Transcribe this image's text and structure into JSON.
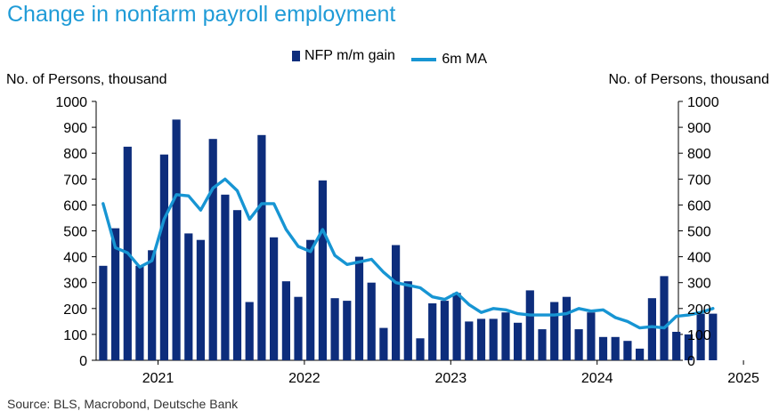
{
  "colors": {
    "bar": "#0d2d7c",
    "line": "#1795d3",
    "title": "#1f9bd7"
  },
  "chart_data": {
    "type": "bar",
    "title": "Change in nonfarm payroll employment",
    "ylabel_left": "No. of Persons, thousand",
    "ylabel_right": "No. of Persons, thousand",
    "source": "Source: BLS, Macrobond, Deutsche Bank",
    "legend": {
      "position": "top-center",
      "bar": "NFP m/m gain",
      "line": "6m MA"
    },
    "ylim": [
      0,
      1000
    ],
    "yticks": [
      0,
      100,
      200,
      300,
      400,
      500,
      600,
      700,
      800,
      900,
      1000
    ],
    "xticks": [
      "2021",
      "2022",
      "2023",
      "2024",
      "2025"
    ],
    "x_start": "2020-08",
    "x_end": "2024-10",
    "categories": [
      "2020-08",
      "2020-09",
      "2020-10",
      "2020-11",
      "2020-12",
      "2021-01",
      "2021-02",
      "2021-03",
      "2021-04",
      "2021-05",
      "2021-06",
      "2021-07",
      "2021-08",
      "2021-09",
      "2021-10",
      "2021-11",
      "2021-12",
      "2022-01",
      "2022-02",
      "2022-03",
      "2022-04",
      "2022-05",
      "2022-06",
      "2022-07",
      "2022-08",
      "2022-09",
      "2022-10",
      "2022-11",
      "2022-12",
      "2023-01",
      "2023-02",
      "2023-03",
      "2023-04",
      "2023-05",
      "2023-06",
      "2023-07",
      "2023-08",
      "2023-09",
      "2023-10",
      "2023-11",
      "2023-12",
      "2024-01",
      "2024-02",
      "2024-03",
      "2024-04",
      "2024-05",
      "2024-06",
      "2024-07",
      "2024-08",
      "2024-09",
      "2024-10"
    ],
    "series": [
      {
        "name": "NFP m/m gain",
        "type": "bar",
        "values": [
          365,
          510,
          825,
          365,
          425,
          795,
          930,
          490,
          465,
          855,
          640,
          580,
          225,
          870,
          475,
          305,
          245,
          465,
          695,
          240,
          230,
          400,
          300,
          125,
          445,
          305,
          85,
          220,
          230,
          260,
          150,
          160,
          160,
          185,
          145,
          270,
          120,
          225,
          245,
          120,
          185,
          90,
          90,
          75,
          45,
          240,
          325,
          110,
          100,
          180,
          180
        ]
      },
      {
        "name": "6m MA",
        "type": "line",
        "values": [
          605,
          435,
          415,
          360,
          385,
          545,
          640,
          635,
          580,
          665,
          700,
          655,
          545,
          605,
          605,
          505,
          440,
          420,
          505,
          405,
          370,
          380,
          390,
          340,
          300,
          290,
          280,
          245,
          235,
          260,
          215,
          185,
          200,
          195,
          180,
          175,
          175,
          175,
          180,
          200,
          190,
          195,
          165,
          150,
          125,
          130,
          125,
          170,
          175,
          185,
          200
        ]
      }
    ]
  }
}
